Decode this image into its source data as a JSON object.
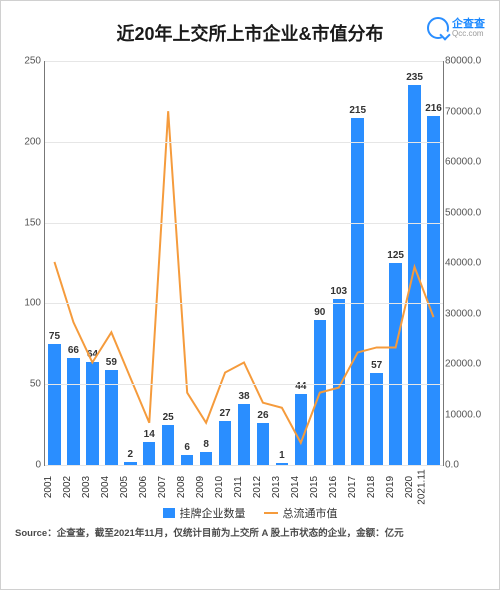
{
  "title": {
    "text": "近20年上交所上市企业&市值分布",
    "fontsize": 18,
    "color": "#1a1a1a"
  },
  "logo": {
    "brand": "企查查",
    "domain": "Qcc.com",
    "color": "#1a88ff"
  },
  "source": "Source：企查查，截至2021年11月，仅统计目前为上交所 A 股上市状态的企业，金额：亿元",
  "chart": {
    "type": "bar+line",
    "background_color": "#ffffff",
    "grid_color": "#e6e6e6",
    "categories": [
      "2001",
      "2002",
      "2003",
      "2004",
      "2005",
      "2006",
      "2007",
      "2008",
      "2009",
      "2010",
      "2011",
      "2012",
      "2013",
      "2014",
      "2015",
      "2016",
      "2017",
      "2018",
      "2019",
      "2020",
      "2021.11"
    ],
    "bars": {
      "label": "挂牌企业数量",
      "color": "#2a8eff",
      "bar_width": 0.66,
      "values": [
        75,
        66,
        64,
        59,
        2,
        14,
        25,
        6,
        8,
        27,
        38,
        26,
        1,
        44,
        90,
        103,
        215,
        57,
        125,
        235,
        216
      ],
      "label_fontsize": 10,
      "label_color": "#333333"
    },
    "line": {
      "label": "总流通市值",
      "color": "#f59b3c",
      "width": 2,
      "values": [
        40000,
        28000,
        20000,
        26000,
        17000,
        8000,
        70000,
        14000,
        8000,
        18000,
        20000,
        12000,
        11000,
        4000,
        14000,
        15000,
        22000,
        23000,
        23000,
        39000,
        29000
      ]
    },
    "y_left": {
      "min": 0,
      "max": 250,
      "step": 50,
      "fontsize": 10,
      "color": "#555555"
    },
    "y_right": {
      "min": 0,
      "max": 80000,
      "step": 10000,
      "fontsize": 10,
      "color": "#555555"
    },
    "x_labels": {
      "fontsize": 10,
      "color": "#333333",
      "rotate": 90
    },
    "legend": {
      "fontsize": 11,
      "color": "#333333",
      "position": "bottom"
    }
  }
}
